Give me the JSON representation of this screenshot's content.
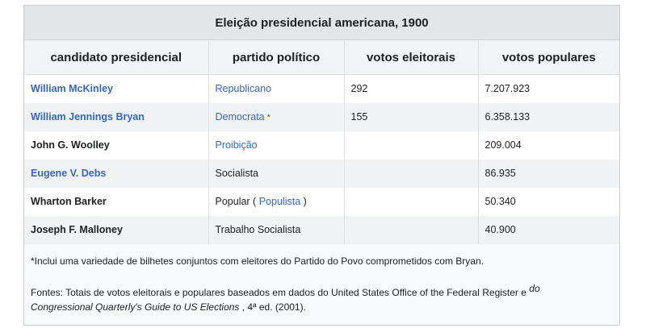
{
  "table": {
    "caption": "Eleição presidencial americana, 1900",
    "headers": [
      "candidato presidencial",
      "partido político",
      "votos eleitorais",
      "votos populares"
    ],
    "rows": [
      {
        "candidate": "William McKinley",
        "party": "Republicano",
        "electoral": "292",
        "popular": "7.207.923"
      },
      {
        "candidate": "William Jennings Bryan",
        "party": "Democrata",
        "party_note": "*",
        "electoral": "155",
        "popular": "6.358.133"
      },
      {
        "candidate": "John G. Woolley",
        "party": "Proibição",
        "electoral": "",
        "popular": "209.004"
      },
      {
        "candidate": "Eugene V. Debs",
        "party": "Socialista",
        "electoral": "",
        "popular": "86.935"
      },
      {
        "candidate": "Wharton Barker",
        "party_prefix": "Popular (",
        "party": "Populista",
        "party_suffix": ")",
        "electoral": "",
        "popular": "50.340"
      },
      {
        "candidate": "Joseph F. Malloney",
        "party": "Trabalho Socialista",
        "electoral": "",
        "popular": "40.900"
      }
    ]
  },
  "notes": {
    "footnote": "*Inclui uma variedade de bilhetes conjuntos com eleitores do Partido do Povo comprometidos com Bryan.",
    "sources_a": "Fontes: Totais de votos eleitorais e populares baseados em dados do United States Office of the Federal Register e",
    "sources_sup": "do",
    "sources_b": "Congressional Quarterly's Guide to US Elections",
    "sources_c": ", 4ª ed. (2001)."
  },
  "colors": {
    "link": "#3366cc",
    "caption_bg": "#e3e5e8",
    "row_alt_bg": "#f1f2f4"
  }
}
